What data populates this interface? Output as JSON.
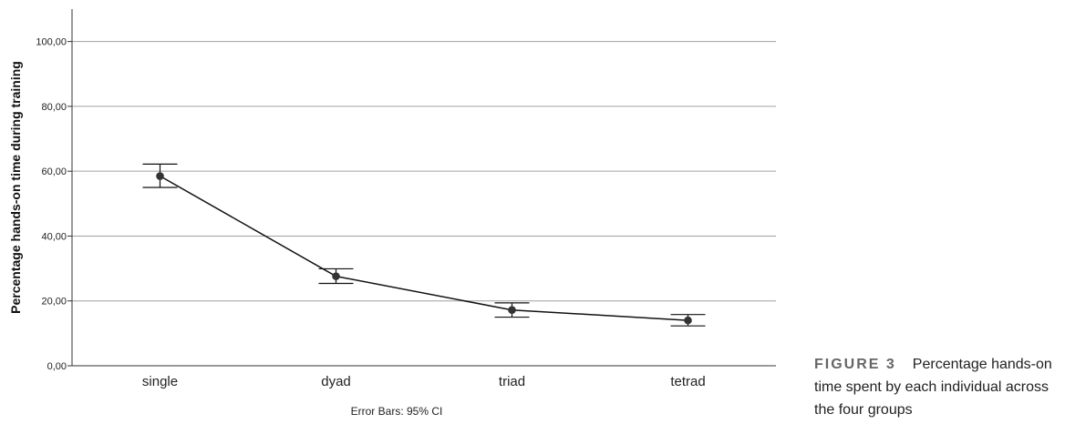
{
  "chart_data": {
    "type": "line",
    "categories": [
      "single",
      "dyad",
      "triad",
      "tetrad"
    ],
    "values": [
      58.5,
      27.6,
      17.2,
      14.0
    ],
    "ci_lower": [
      55.0,
      25.4,
      15.0,
      12.3
    ],
    "ci_upper": [
      62.2,
      29.9,
      19.4,
      15.8
    ],
    "ylabel": "Percentage hands-on time during training",
    "xlabel": "",
    "ylim": [
      0,
      110
    ],
    "yticks": [
      0,
      20,
      40,
      60,
      80,
      100
    ],
    "ytick_labels": [
      "0,00",
      "20,00",
      "40,00",
      "60,00",
      "80,00",
      "100,00"
    ],
    "grid": true,
    "footnote": "Error Bars: 95% CI"
  },
  "caption": {
    "label": "FIGURE 3",
    "text": "Percentage hands-on time spent by each individual across the four groups"
  },
  "colors": {
    "line": "#111111",
    "grid": "#a0a0a0",
    "marker": "#333333"
  }
}
